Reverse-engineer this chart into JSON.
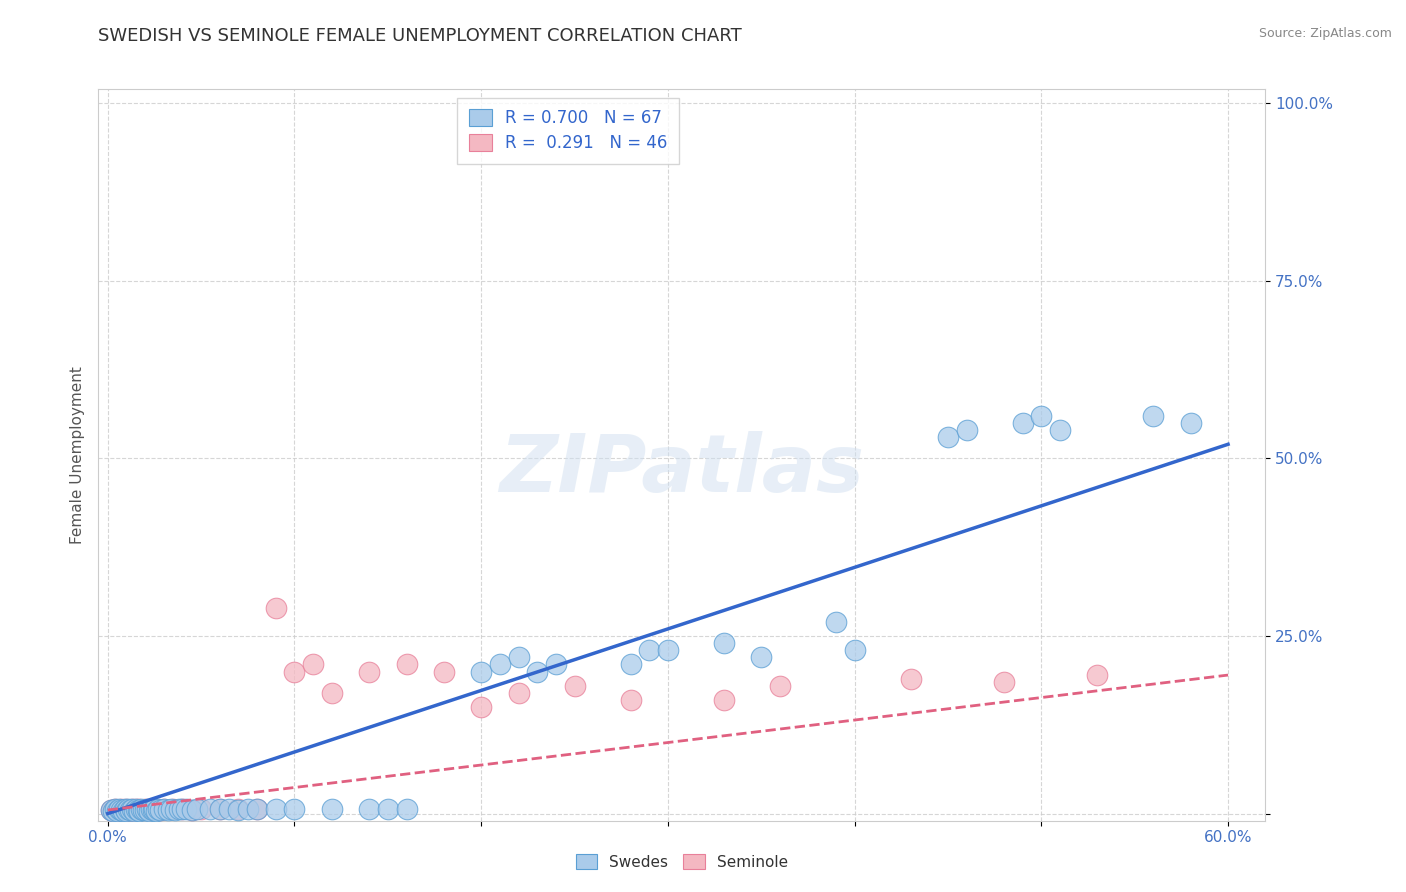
{
  "title": "SWEDISH VS SEMINOLE FEMALE UNEMPLOYMENT CORRELATION CHART",
  "source_text": "Source: ZipAtlas.com",
  "xlabel": "",
  "ylabel": "Female Unemployment",
  "xlim": [
    -0.005,
    0.62
  ],
  "ylim": [
    -0.01,
    1.02
  ],
  "xticks": [
    0.0,
    0.1,
    0.2,
    0.3,
    0.4,
    0.5,
    0.6
  ],
  "xticklabels": [
    "0.0%",
    "",
    "",
    "",
    "",
    "",
    "60.0%"
  ],
  "yticks": [
    0.0,
    0.25,
    0.5,
    0.75,
    1.0
  ],
  "yticklabels": [
    "",
    "25.0%",
    "50.0%",
    "75.0%",
    "100.0%"
  ],
  "swedes_R": 0.7,
  "swedes_N": 67,
  "seminole_R": 0.291,
  "seminole_N": 46,
  "blue_color": "#aacbea",
  "pink_color": "#f4b8c2",
  "blue_edge_color": "#5a9fd4",
  "pink_edge_color": "#e8809a",
  "blue_line_color": "#3366cc",
  "pink_line_color": "#e06080",
  "tick_label_color": "#4472c4",
  "watermark": "ZIPatlas",
  "legend_bottom_labels": [
    "Swedes",
    "Seminole"
  ],
  "swedes_x": [
    0.002,
    0.003,
    0.004,
    0.005,
    0.006,
    0.007,
    0.008,
    0.009,
    0.01,
    0.011,
    0.012,
    0.013,
    0.014,
    0.015,
    0.016,
    0.017,
    0.018,
    0.019,
    0.02,
    0.021,
    0.022,
    0.023,
    0.024,
    0.025,
    0.026,
    0.027,
    0.028,
    0.03,
    0.032,
    0.034,
    0.036,
    0.038,
    0.04,
    0.042,
    0.045,
    0.048,
    0.055,
    0.06,
    0.065,
    0.07,
    0.075,
    0.08,
    0.09,
    0.1,
    0.12,
    0.14,
    0.15,
    0.16,
    0.2,
    0.21,
    0.22,
    0.23,
    0.24,
    0.28,
    0.29,
    0.3,
    0.33,
    0.35,
    0.39,
    0.4,
    0.45,
    0.46,
    0.49,
    0.5,
    0.51,
    0.56,
    0.58
  ],
  "swedes_y": [
    0.005,
    0.004,
    0.006,
    0.003,
    0.007,
    0.005,
    0.004,
    0.006,
    0.004,
    0.006,
    0.005,
    0.007,
    0.004,
    0.006,
    0.005,
    0.004,
    0.006,
    0.005,
    0.005,
    0.006,
    0.004,
    0.007,
    0.005,
    0.006,
    0.004,
    0.007,
    0.005,
    0.006,
    0.005,
    0.007,
    0.005,
    0.006,
    0.006,
    0.007,
    0.005,
    0.006,
    0.007,
    0.006,
    0.007,
    0.005,
    0.007,
    0.006,
    0.007,
    0.006,
    0.007,
    0.007,
    0.006,
    0.007,
    0.2,
    0.21,
    0.22,
    0.2,
    0.21,
    0.21,
    0.23,
    0.23,
    0.24,
    0.22,
    0.27,
    0.23,
    0.53,
    0.54,
    0.55,
    0.56,
    0.54,
    0.56,
    0.55
  ],
  "seminole_x": [
    0.002,
    0.003,
    0.004,
    0.005,
    0.006,
    0.007,
    0.008,
    0.009,
    0.01,
    0.011,
    0.012,
    0.013,
    0.014,
    0.015,
    0.016,
    0.017,
    0.018,
    0.02,
    0.022,
    0.024,
    0.026,
    0.028,
    0.03,
    0.035,
    0.04,
    0.045,
    0.05,
    0.06,
    0.07,
    0.08,
    0.09,
    0.1,
    0.11,
    0.12,
    0.14,
    0.16,
    0.18,
    0.2,
    0.22,
    0.25,
    0.28,
    0.33,
    0.36,
    0.43,
    0.48,
    0.53
  ],
  "seminole_y": [
    0.005,
    0.004,
    0.006,
    0.004,
    0.005,
    0.006,
    0.004,
    0.005,
    0.006,
    0.005,
    0.004,
    0.006,
    0.005,
    0.007,
    0.005,
    0.006,
    0.005,
    0.006,
    0.005,
    0.007,
    0.006,
    0.005,
    0.006,
    0.007,
    0.006,
    0.005,
    0.006,
    0.007,
    0.006,
    0.007,
    0.29,
    0.2,
    0.21,
    0.17,
    0.2,
    0.21,
    0.2,
    0.15,
    0.17,
    0.18,
    0.16,
    0.16,
    0.18,
    0.19,
    0.185,
    0.195
  ],
  "blue_line_x": [
    0.0,
    0.6
  ],
  "blue_line_y": [
    0.0,
    0.52
  ],
  "pink_line_x": [
    0.0,
    0.6
  ],
  "pink_line_y": [
    0.005,
    0.195
  ]
}
